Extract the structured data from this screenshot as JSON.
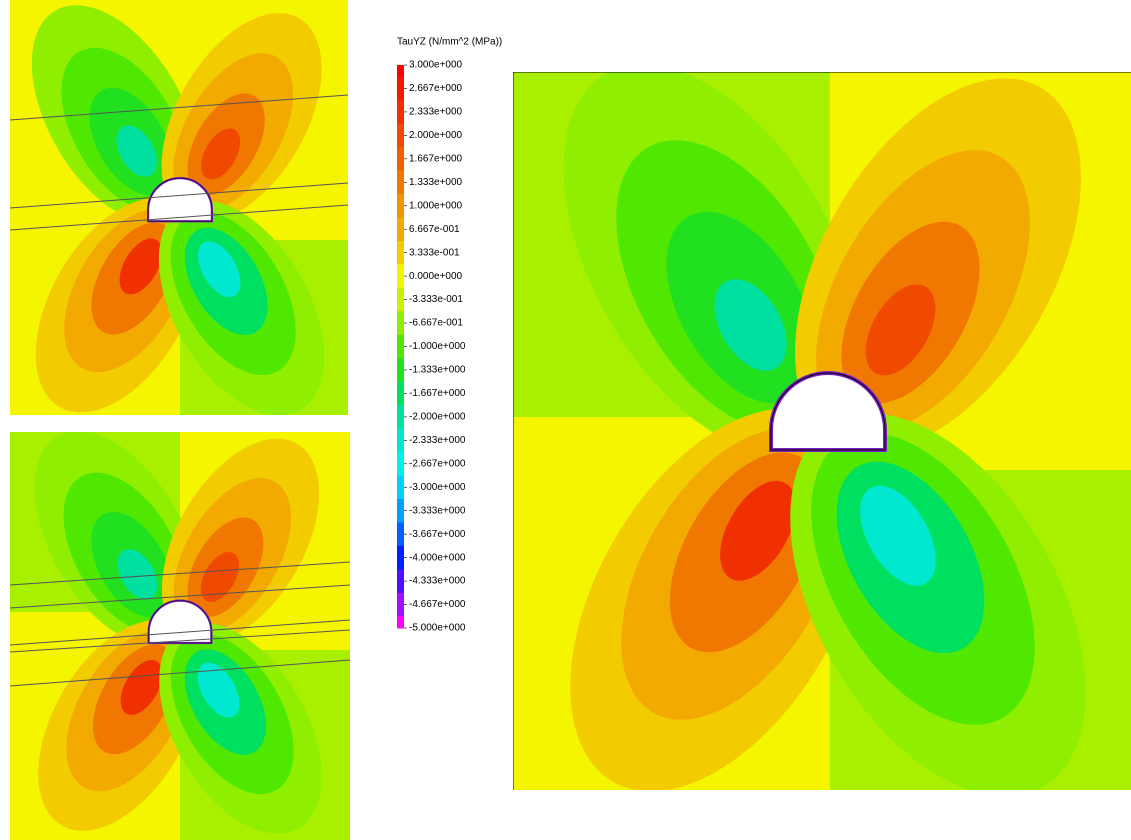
{
  "legend": {
    "title": "TauYZ (N/mm^2 (MPa))",
    "entries": [
      {
        "label": "3.000e+000",
        "color": "#ff0000"
      },
      {
        "label": "2.667e+000",
        "color": "#f21a00"
      },
      {
        "label": "2.333e+000",
        "color": "#f03000"
      },
      {
        "label": "2.000e+000",
        "color": "#f04a00"
      },
      {
        "label": "1.667e+000",
        "color": "#f06000"
      },
      {
        "label": "1.333e+000",
        "color": "#f07800"
      },
      {
        "label": "1.000e+000",
        "color": "#f29400"
      },
      {
        "label": "6.667e-001",
        "color": "#f2aa00"
      },
      {
        "label": "3.333e-001",
        "color": "#f2cc00"
      },
      {
        "label": "0.000e+000",
        "color": "#f5f500"
      },
      {
        "label": "-3.333e-001",
        "color": "#ccf000"
      },
      {
        "label": "-6.667e-001",
        "color": "#90ee00"
      },
      {
        "label": "-1.000e+000",
        "color": "#50e800"
      },
      {
        "label": "-1.333e+000",
        "color": "#20e020"
      },
      {
        "label": "-1.667e+000",
        "color": "#00e060"
      },
      {
        "label": "-2.000e+000",
        "color": "#00e0a0"
      },
      {
        "label": "-2.333e+000",
        "color": "#00e8d0"
      },
      {
        "label": "-2.667e+000",
        "color": "#00f0f0"
      },
      {
        "label": "-3.000e+000",
        "color": "#00d0ff"
      },
      {
        "label": "-3.333e+000",
        "color": "#00a0ff"
      },
      {
        "label": "-3.667e+000",
        "color": "#0060ff"
      },
      {
        "label": "-4.000e+000",
        "color": "#0020ff"
      },
      {
        "label": "-4.333e+000",
        "color": "#5010ff"
      },
      {
        "label": "-4.667e+000",
        "color": "#a010ff"
      },
      {
        "label": "-5.000e+000",
        "color": "#ff00ff"
      }
    ]
  }
}
